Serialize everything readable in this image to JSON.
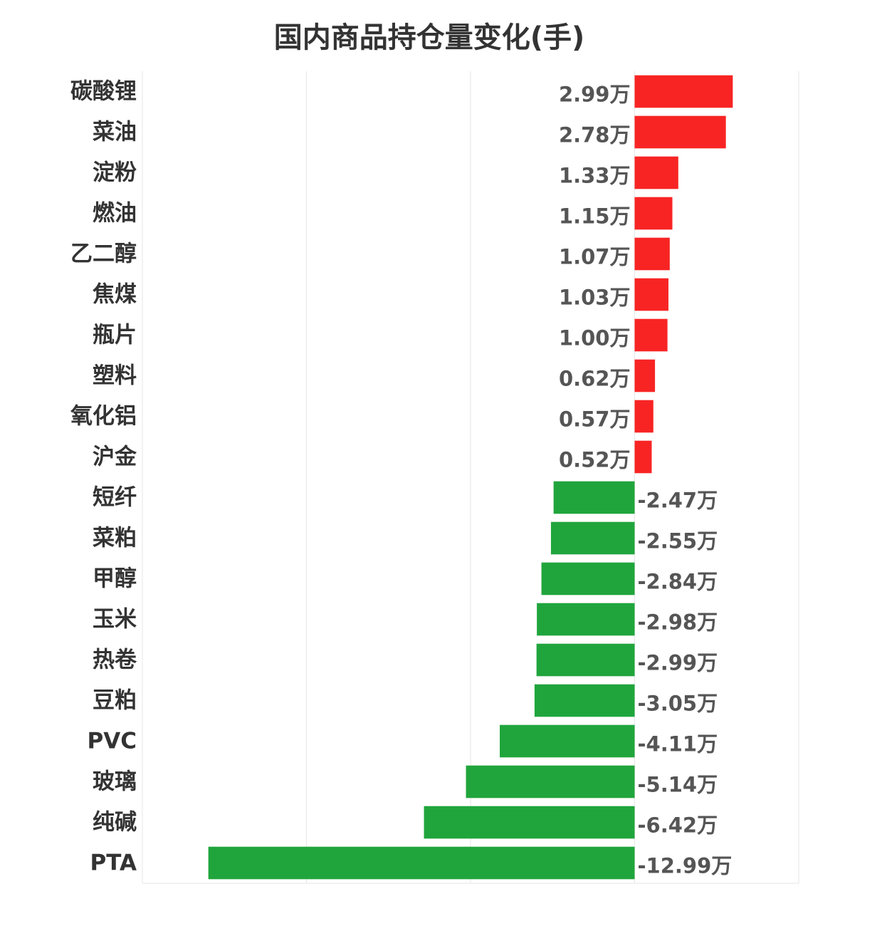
{
  "title": "国内商品持仓量变化(手)",
  "colors": {
    "positive": "#f82424",
    "negative": "#20a53c",
    "grid": "#e6e6e6"
  },
  "chart_data": {
    "type": "bar",
    "orientation": "horizontal",
    "title": "国内商品持仓量变化(手)",
    "xlabel": "",
    "ylabel": "",
    "unit_suffix": "万",
    "xlim": [
      -15,
      5
    ],
    "grid": true,
    "categories": [
      "碳酸锂",
      "菜油",
      "淀粉",
      "燃油",
      "乙二醇",
      "焦煤",
      "瓶片",
      "塑料",
      "氧化铝",
      "沪金",
      "短纤",
      "菜粕",
      "甲醇",
      "玉米",
      "热卷",
      "豆粕",
      "PVC",
      "玻璃",
      "纯碱",
      "PTA"
    ],
    "values": [
      2.99,
      2.78,
      1.33,
      1.15,
      1.07,
      1.03,
      1.0,
      0.62,
      0.57,
      0.52,
      -2.47,
      -2.55,
      -2.84,
      -2.98,
      -2.99,
      -3.05,
      -4.11,
      -5.14,
      -6.42,
      -12.99
    ],
    "labels": [
      "2.99万",
      "2.78万",
      "1.33万",
      "1.15万",
      "1.07万",
      "1.03万",
      "1.00万",
      "0.62万",
      "0.57万",
      "0.52万",
      "-2.47万",
      "-2.55万",
      "-2.84万",
      "-2.98万",
      "-2.99万",
      "-3.05万",
      "-4.11万",
      "-5.14万",
      "-6.42万",
      "-12.99万"
    ]
  }
}
